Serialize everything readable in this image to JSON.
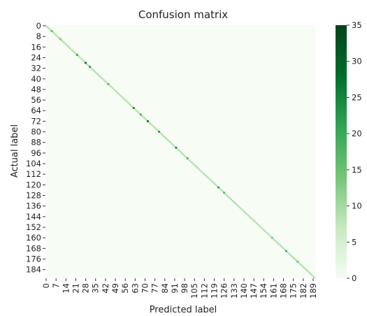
{
  "chart_data": {
    "type": "heatmap",
    "title": "Confusion matrix",
    "xlabel": "Predicted label",
    "ylabel": "Actual label",
    "n_classes": 191,
    "x_tick_labels": [
      "0",
      "7",
      "14",
      "21",
      "28",
      "35",
      "42",
      "49",
      "56",
      "63",
      "70",
      "77",
      "84",
      "91",
      "98",
      "105",
      "112",
      "119",
      "126",
      "133",
      "140",
      "147",
      "154",
      "161",
      "168",
      "175",
      "182",
      "189"
    ],
    "y_tick_labels": [
      "0",
      "8",
      "16",
      "24",
      "32",
      "40",
      "48",
      "56",
      "64",
      "72",
      "80",
      "88",
      "96",
      "104",
      "112",
      "120",
      "128",
      "136",
      "144",
      "152",
      "160",
      "168",
      "176",
      "184"
    ],
    "colorbar": {
      "min": 0,
      "max": 35,
      "ticks": [
        "0",
        "5",
        "10",
        "15",
        "20",
        "25",
        "30",
        "35"
      ]
    },
    "colormap": [
      "#f7fcf5",
      "#c7e9c0",
      "#74c476",
      "#31a354",
      "#006d2c",
      "#00441b"
    ],
    "diagonal_note": "Nearly all mass on the diagonal; off-diagonal cells ~0",
    "diagonal_highlights": [
      {
        "class": 4,
        "value": 18
      },
      {
        "class": 10,
        "value": 14
      },
      {
        "class": 22,
        "value": 22
      },
      {
        "class": 28,
        "value": 30
      },
      {
        "class": 31,
        "value": 25
      },
      {
        "class": 44,
        "value": 18
      },
      {
        "class": 62,
        "value": 27
      },
      {
        "class": 67,
        "value": 20
      },
      {
        "class": 72,
        "value": 30
      },
      {
        "class": 80,
        "value": 24
      },
      {
        "class": 92,
        "value": 26
      },
      {
        "class": 100,
        "value": 20
      },
      {
        "class": 122,
        "value": 22
      },
      {
        "class": 126,
        "value": 18
      },
      {
        "class": 160,
        "value": 14
      },
      {
        "class": 170,
        "value": 20
      },
      {
        "class": 178,
        "value": 16
      }
    ],
    "diagonal_base_value": 9
  }
}
